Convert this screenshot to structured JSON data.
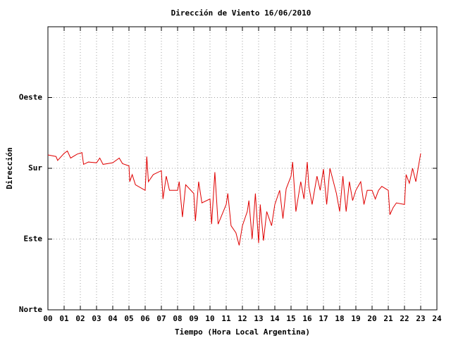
{
  "chart_data": {
    "type": "line",
    "title": "Dirección de Viento 16/06/2010",
    "xlabel": "Tiempo (Hora Local Argentina)",
    "ylabel": "Dirección",
    "x": [
      0,
      0.5,
      0.6,
      1.0,
      1.2,
      1.4,
      1.8,
      2.1,
      2.2,
      2.5,
      3.0,
      3.2,
      3.4,
      4.0,
      4.4,
      4.6,
      5.0,
      5.05,
      5.2,
      5.4,
      6.0,
      6.1,
      6.2,
      6.5,
      7.0,
      7.1,
      7.3,
      7.5,
      8.0,
      8.1,
      8.3,
      8.5,
      9.0,
      9.1,
      9.3,
      9.5,
      10.0,
      10.1,
      10.3,
      10.5,
      11.0,
      11.1,
      11.3,
      11.6,
      11.8,
      12.0,
      12.3,
      12.4,
      12.6,
      12.8,
      13.0,
      13.1,
      13.3,
      13.5,
      13.8,
      14.0,
      14.3,
      14.5,
      14.7,
      15.0,
      15.1,
      15.3,
      15.6,
      15.8,
      16.0,
      16.1,
      16.3,
      16.6,
      16.8,
      17.0,
      17.2,
      17.4,
      17.8,
      18.0,
      18.2,
      18.4,
      18.6,
      18.8,
      19.0,
      19.3,
      19.5,
      19.7,
      20.0,
      20.2,
      20.4,
      20.6,
      21.0,
      21.1,
      21.3,
      21.5,
      22.0,
      22.1,
      22.3,
      22.5,
      22.7,
      23.0
    ],
    "values": [
      197,
      195,
      190,
      199,
      202,
      193,
      198,
      200,
      185,
      188,
      187,
      193,
      185,
      187,
      193,
      186,
      183,
      163,
      172,
      159,
      152,
      195,
      163,
      172,
      177,
      141,
      170,
      152,
      152,
      163,
      118,
      159,
      148,
      113,
      163,
      136,
      141,
      109,
      175,
      109,
      134,
      148,
      107,
      98,
      82,
      107,
      125,
      139,
      90,
      148,
      85,
      134,
      88,
      125,
      107,
      134,
      152,
      116,
      154,
      170,
      188,
      125,
      163,
      141,
      188,
      157,
      134,
      170,
      152,
      179,
      134,
      180,
      148,
      125,
      170,
      125,
      163,
      139,
      152,
      163,
      134,
      152,
      152,
      141,
      152,
      157,
      152,
      121,
      130,
      136,
      134,
      172,
      161,
      180,
      163,
      199
    ],
    "color": "#e00000",
    "xlim": [
      0,
      24
    ],
    "xticks": [
      {
        "value": 0,
        "label": "00"
      },
      {
        "value": 1,
        "label": "01"
      },
      {
        "value": 2,
        "label": "02"
      },
      {
        "value": 3,
        "label": "03"
      },
      {
        "value": 4,
        "label": "04"
      },
      {
        "value": 5,
        "label": "05"
      },
      {
        "value": 6,
        "label": "06"
      },
      {
        "value": 7,
        "label": "07"
      },
      {
        "value": 8,
        "label": "08"
      },
      {
        "value": 9,
        "label": "09"
      },
      10,
      11,
      12,
      13,
      14,
      15,
      16,
      17,
      18,
      19,
      20,
      21,
      22,
      23,
      24
    ],
    "ylim": [
      0,
      360
    ],
    "yticks": [
      {
        "value": 0,
        "label": "Norte"
      },
      {
        "value": 90,
        "label": "Este"
      },
      {
        "value": 180,
        "label": "Sur"
      },
      {
        "value": 270,
        "label": "Oeste"
      }
    ],
    "grid": true
  }
}
